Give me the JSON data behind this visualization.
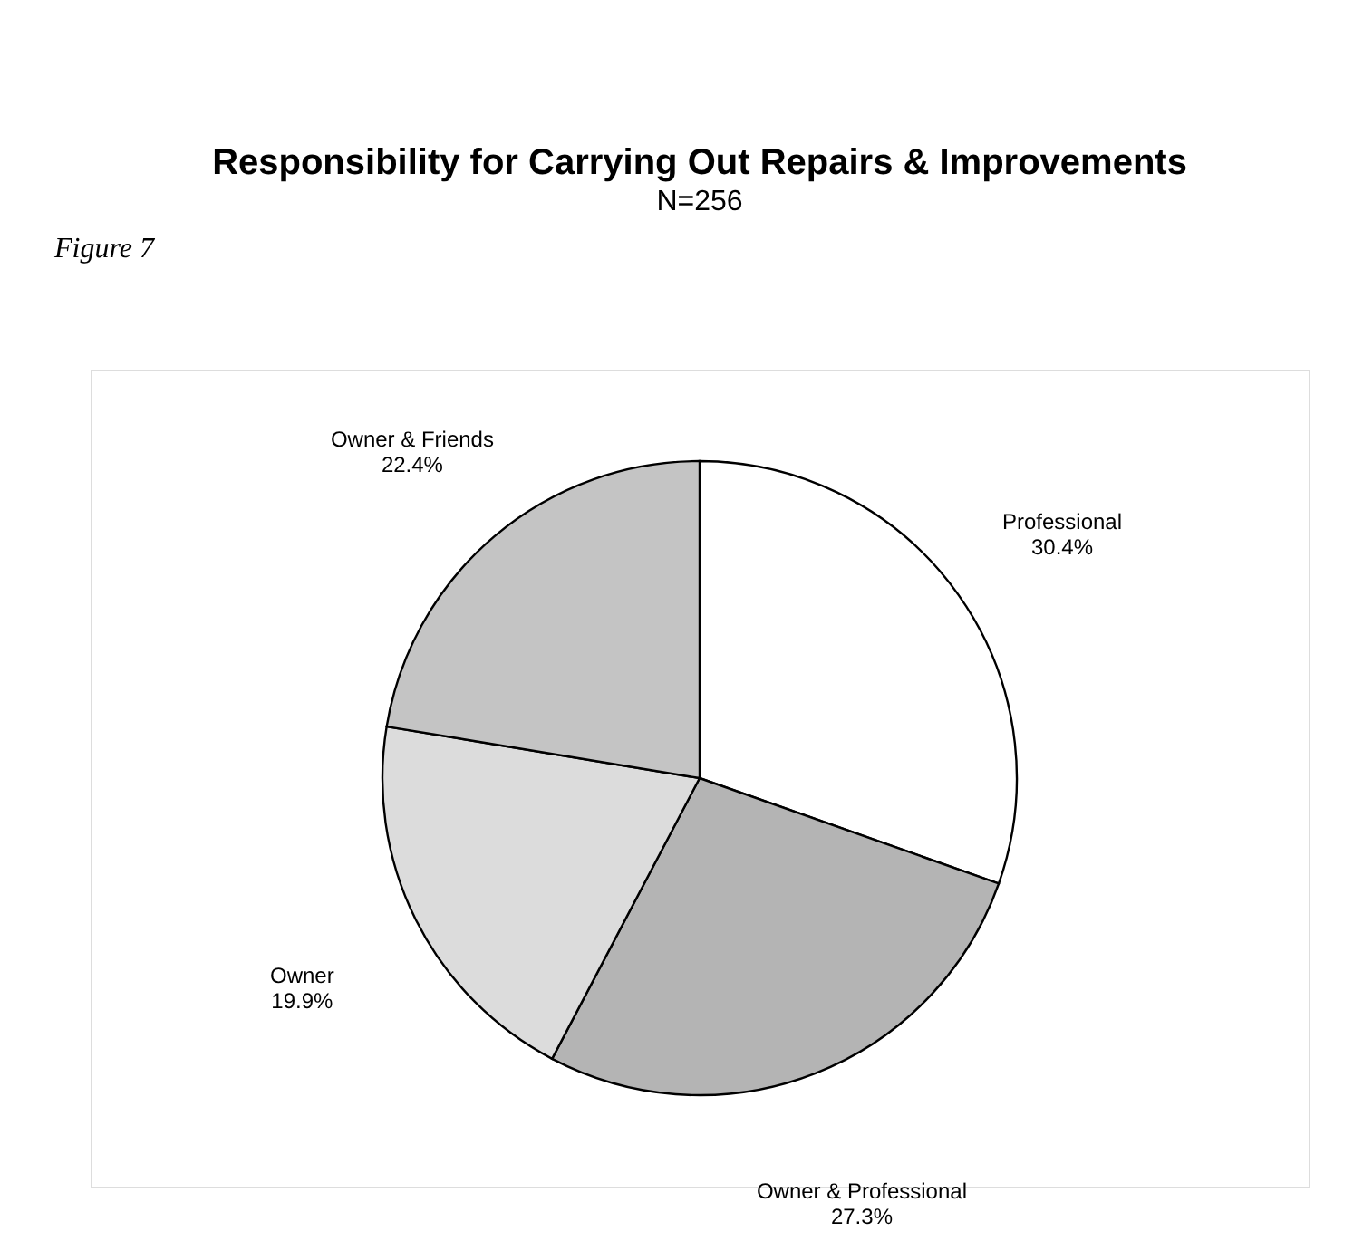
{
  "chart_data": {
    "type": "pie",
    "title": "Responsibility for Carrying Out Repairs & Improvements",
    "subtitle": "N=256",
    "annotations": [
      "Figure 7"
    ],
    "categories": [
      "Professional",
      "Owner & Professional",
      "Owner",
      "Owner & Friends"
    ],
    "values": [
      30.4,
      27.3,
      19.9,
      22.4
    ],
    "value_labels": [
      "30.4%",
      "27.3%",
      "19.9%",
      "22.4%"
    ],
    "colors": [
      "#ffffff",
      "#b4b4b4",
      "#dcdcdc",
      "#c4c4c4"
    ]
  }
}
